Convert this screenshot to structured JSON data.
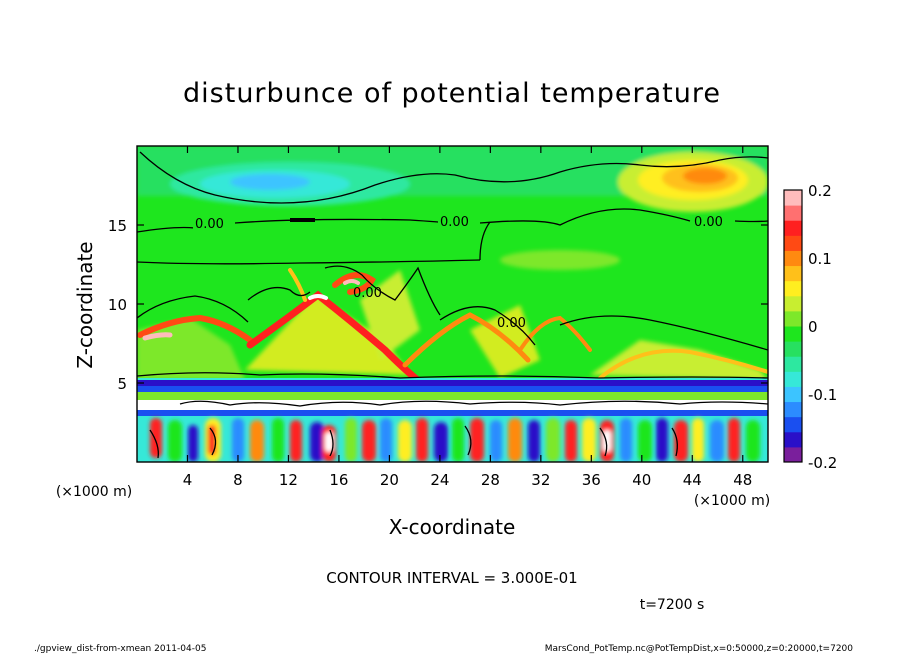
{
  "chart_data": {
    "type": "heatmap",
    "title": "disturbunce of potential temperature",
    "xlabel": "X-coordinate",
    "ylabel": "Z-coordinate",
    "x_unit": "(×1000 m)",
    "y_unit": "(×1000 m)",
    "xlim": [
      0,
      50
    ],
    "ylim": [
      0,
      20
    ],
    "x_ticks": [
      4,
      8,
      12,
      16,
      20,
      24,
      28,
      32,
      36,
      40,
      44,
      48
    ],
    "y_ticks": [
      5,
      10,
      15
    ],
    "colorbar": {
      "range": [
        -0.2,
        0.2
      ],
      "tick_labels": [
        "0.2",
        "0.1",
        "0",
        "-0.1",
        "-0.2"
      ],
      "tick_values": [
        0.2,
        0.1,
        0,
        -0.1,
        -0.2
      ],
      "colors": [
        "#7a1f9c",
        "#2a10c8",
        "#1a4ff0",
        "#2c8cff",
        "#3cc4ff",
        "#36e8d8",
        "#2de8a0",
        "#27e060",
        "#1ee61e",
        "#7de82a",
        "#c8ee30",
        "#ffee20",
        "#ffc01a",
        "#ff8a10",
        "#ff4a14",
        "#ff2020",
        "#ff7070",
        "#ffbcbc"
      ]
    },
    "contour_labels": [
      {
        "text": "0.00",
        "x": 6.0,
        "z": 14.9
      },
      {
        "text": "0.00",
        "x": 25.5,
        "z": 15.0
      },
      {
        "text": "0.00",
        "x": 46.3,
        "z": 15.0
      },
      {
        "text": "0.00",
        "x": 19.0,
        "z": 10.4
      },
      {
        "text": "0.00",
        "x": 29.5,
        "z": 8.6
      }
    ],
    "contour_interval_text": "CONTOUR INTERVAL = 3.000E-01",
    "time_text": "t=7200 s",
    "footer_left": "./gpview_dist-from-xmean  2011-04-05",
    "footer_right": "MarsCond_PotTemp.nc@PotTempDist,x=0:50000,z=0:20000,t=7200"
  }
}
